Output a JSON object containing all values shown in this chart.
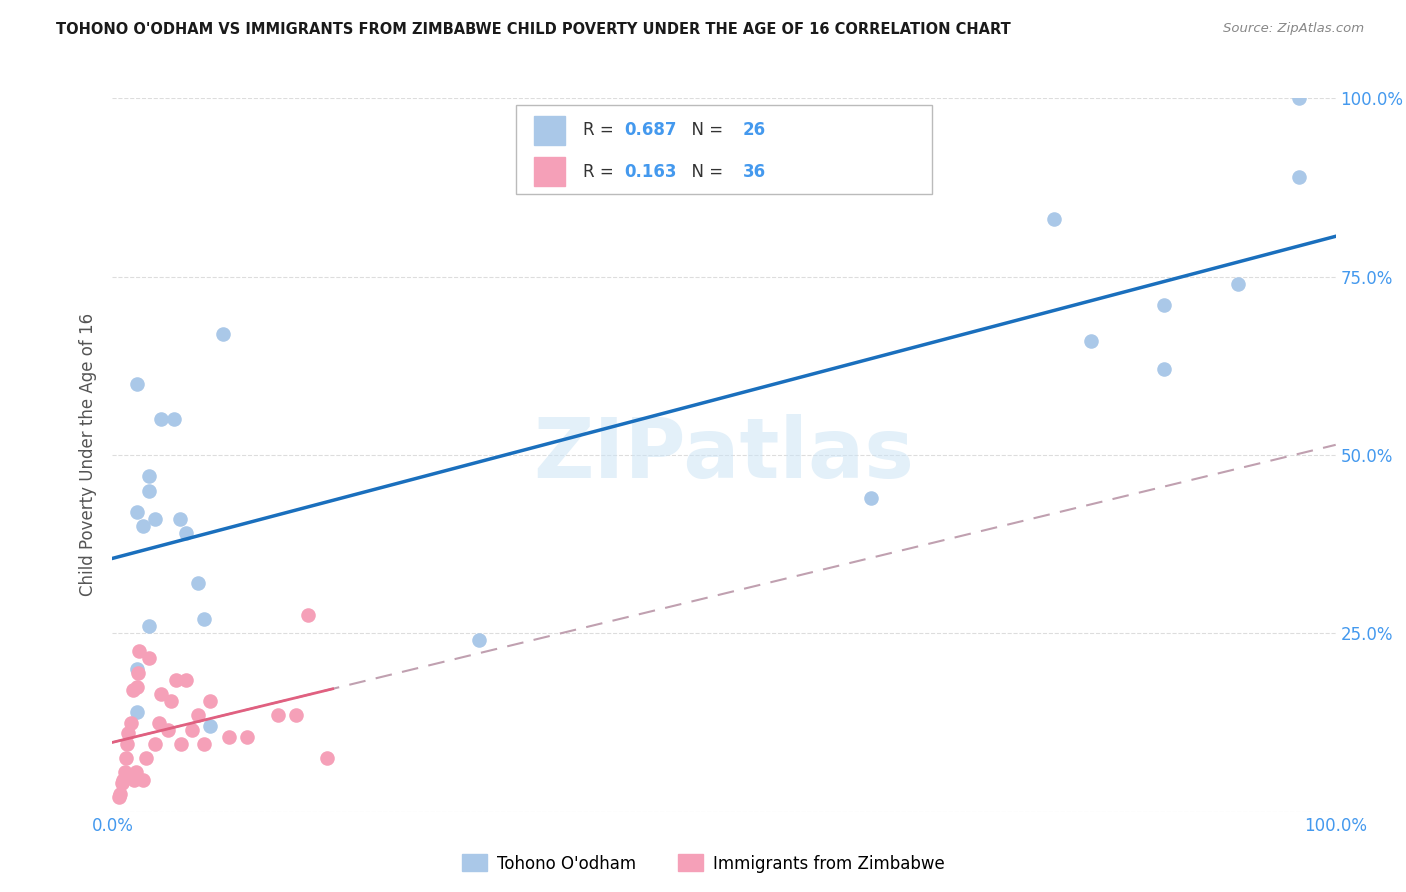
{
  "title": "TOHONO O'ODHAM VS IMMIGRANTS FROM ZIMBABWE CHILD POVERTY UNDER THE AGE OF 16 CORRELATION CHART",
  "source": "Source: ZipAtlas.com",
  "ylabel": "Child Poverty Under the Age of 16",
  "legend_label1": "Tohono O'odham",
  "legend_label2": "Immigrants from Zimbabwe",
  "R1": "0.687",
  "N1": "26",
  "R2": "0.163",
  "N2": "36",
  "blue_color": "#aac8e8",
  "pink_color": "#f5a0b8",
  "line_blue": "#1a6fbd",
  "line_pink_dashed": "#c0a0b0",
  "line_pink_solid": "#e06080",
  "watermark": "ZIPatlas",
  "tick_color": "#4499ee",
  "grid_color": "#dddddd",
  "blue_points_x": [
    0.02,
    0.025,
    0.035,
    0.055,
    0.06,
    0.03,
    0.04,
    0.3,
    0.07,
    0.075,
    0.02,
    0.03,
    0.05,
    0.62,
    0.77,
    0.8,
    0.86,
    0.86,
    0.92,
    0.97,
    0.97,
    0.02,
    0.02,
    0.03,
    0.08,
    0.09
  ],
  "blue_points_y": [
    0.42,
    0.4,
    0.41,
    0.41,
    0.39,
    0.45,
    0.55,
    0.24,
    0.32,
    0.27,
    0.6,
    0.47,
    0.55,
    0.44,
    0.83,
    0.66,
    0.62,
    0.71,
    0.74,
    0.89,
    1.0,
    0.2,
    0.14,
    0.26,
    0.12,
    0.67
  ],
  "pink_points_x": [
    0.005,
    0.006,
    0.008,
    0.009,
    0.01,
    0.011,
    0.012,
    0.013,
    0.015,
    0.017,
    0.018,
    0.019,
    0.02,
    0.021,
    0.022,
    0.025,
    0.027,
    0.03,
    0.035,
    0.038,
    0.04,
    0.045,
    0.048,
    0.052,
    0.056,
    0.06,
    0.065,
    0.07,
    0.075,
    0.08,
    0.095,
    0.11,
    0.135,
    0.15,
    0.16,
    0.175
  ],
  "pink_points_y": [
    0.02,
    0.025,
    0.04,
    0.045,
    0.055,
    0.075,
    0.095,
    0.11,
    0.125,
    0.17,
    0.045,
    0.055,
    0.175,
    0.195,
    0.225,
    0.045,
    0.075,
    0.215,
    0.095,
    0.125,
    0.165,
    0.115,
    0.155,
    0.185,
    0.095,
    0.185,
    0.115,
    0.135,
    0.095,
    0.155,
    0.105,
    0.105,
    0.135,
    0.135,
    0.275,
    0.075
  ]
}
